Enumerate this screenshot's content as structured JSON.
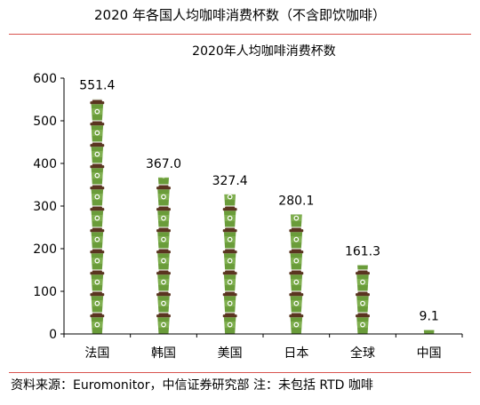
{
  "figure": {
    "title": "2020 年各国人均咖啡消费杯数（不含即饮咖啡）",
    "source": "资料来源：Euromonitor，中信证券研究部 注：未包括 RTD 咖啡"
  },
  "colors": {
    "cup_body": "#6a9c3a",
    "cup_lid": "#5a3420",
    "cup_sleeve": "#8fbf60",
    "rule": "#d9534f",
    "axis": "#000000"
  },
  "chart_data": {
    "type": "bar",
    "title": "2020年人均咖啡消费杯数",
    "categories": [
      "法国",
      "韩国",
      "美国",
      "日本",
      "全球",
      "中国"
    ],
    "values": [
      551.4,
      367.0,
      327.4,
      280.1,
      161.3,
      9.1
    ],
    "value_labels": [
      "551.4",
      "367.0",
      "327.4",
      "280.1",
      "161.3",
      "9.1"
    ],
    "ylim": [
      0,
      600
    ],
    "yticks": [
      0,
      100,
      200,
      300,
      400,
      500,
      600
    ],
    "units_per_cup": 50,
    "grid": false,
    "legend": "none"
  }
}
